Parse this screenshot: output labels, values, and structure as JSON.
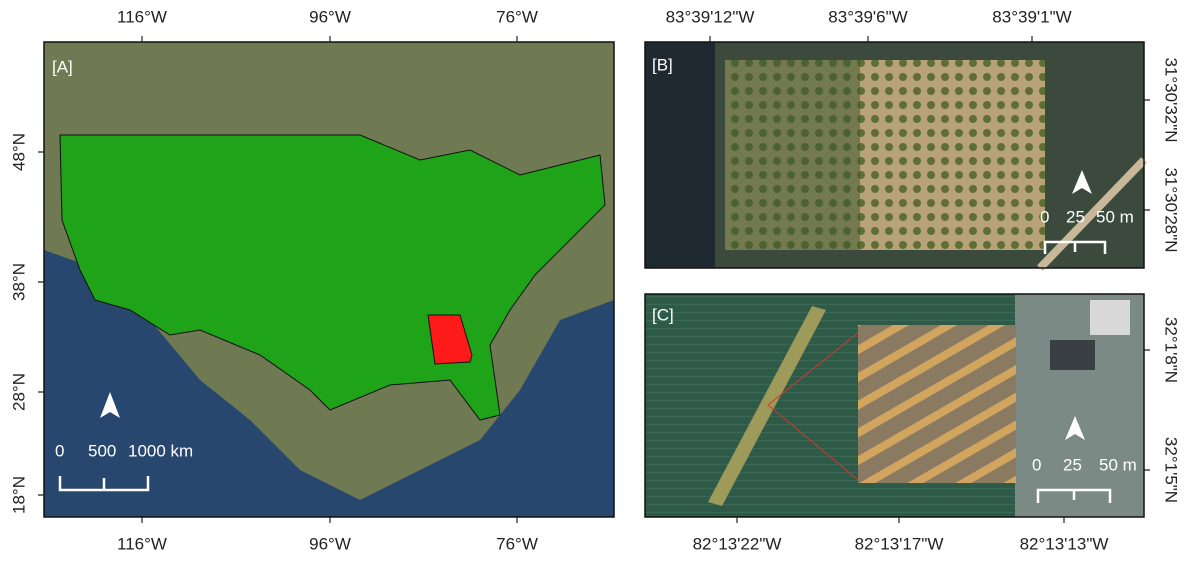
{
  "panels": [
    {
      "label": "[A]",
      "top_ticks": [
        "116°W",
        "96°W",
        "76°W"
      ],
      "bottom_ticks": [
        "116°W",
        "96°W",
        "76°W"
      ],
      "left_ticks": [
        "48°N",
        "38°N",
        "28°N",
        "18°N"
      ],
      "scale": [
        "0",
        "500",
        "1000 km"
      ]
    },
    {
      "label": "[B]",
      "top_ticks": [
        "83°39'12\"W",
        "83°39'6\"W",
        "83°39'1\"W"
      ],
      "right_ticks": [
        "31°30'32\"N",
        "31°30'28\"N"
      ],
      "scale": [
        "0",
        "25",
        "50 m"
      ]
    },
    {
      "label": "[C]",
      "bottom_ticks": [
        "82°13'22\"W",
        "82°13'17\"W",
        "82°13'13\"W"
      ],
      "right_ticks": [
        "32°1'8\"N",
        "32°1'5\"N"
      ],
      "scale": [
        "0",
        "25",
        "50 m"
      ]
    }
  ]
}
